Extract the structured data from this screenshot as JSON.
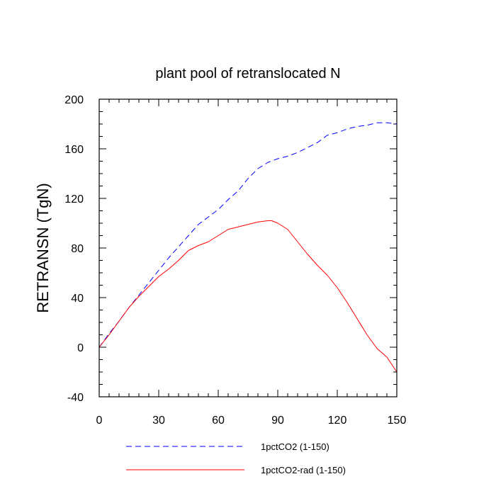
{
  "chart_data": {
    "type": "line",
    "title": "plant pool of retranslocated N",
    "xlabel": "",
    "ylabel": "RETRANSN  (TgN)",
    "xlim": [
      0,
      150
    ],
    "ylim": [
      -40,
      200
    ],
    "xticks": [
      0,
      30,
      60,
      90,
      120,
      150
    ],
    "yticks": [
      -40,
      0,
      40,
      80,
      120,
      160,
      200
    ],
    "x_minor_step": 5,
    "y_minor_step": 10,
    "grid": false,
    "legend_placement": "bottom",
    "series": [
      {
        "name": "1pctCO2 (1-150)",
        "color": "#0000ff",
        "style": "dashed",
        "x": [
          0,
          5,
          10,
          15,
          20,
          25,
          30,
          35,
          40,
          45,
          50,
          55,
          60,
          65,
          70,
          75,
          80,
          85,
          90,
          95,
          100,
          105,
          110,
          115,
          120,
          125,
          130,
          135,
          140,
          145,
          150
        ],
        "y": [
          0,
          11,
          21,
          32,
          42,
          52,
          62,
          72,
          81,
          90,
          99,
          105,
          111,
          119,
          126,
          136,
          144,
          149,
          152,
          154,
          157,
          161,
          165,
          171,
          173,
          176,
          178,
          179,
          181,
          181,
          180
        ]
      },
      {
        "name": "1pctCO2-rad (1-150)",
        "color": "#ff0000",
        "style": "solid",
        "x": [
          0,
          5,
          10,
          15,
          20,
          25,
          30,
          35,
          40,
          45,
          50,
          55,
          60,
          65,
          70,
          75,
          80,
          85,
          87,
          90,
          95,
          100,
          105,
          110,
          115,
          120,
          125,
          130,
          135,
          140,
          145,
          150
        ],
        "y": [
          0,
          10,
          21,
          32,
          41,
          49,
          57,
          63,
          70,
          78,
          82,
          85,
          90,
          95,
          97,
          99,
          101,
          102,
          102,
          100,
          95,
          85,
          75,
          66,
          58,
          48,
          36,
          23,
          10,
          -1,
          -8,
          -20
        ]
      }
    ]
  }
}
